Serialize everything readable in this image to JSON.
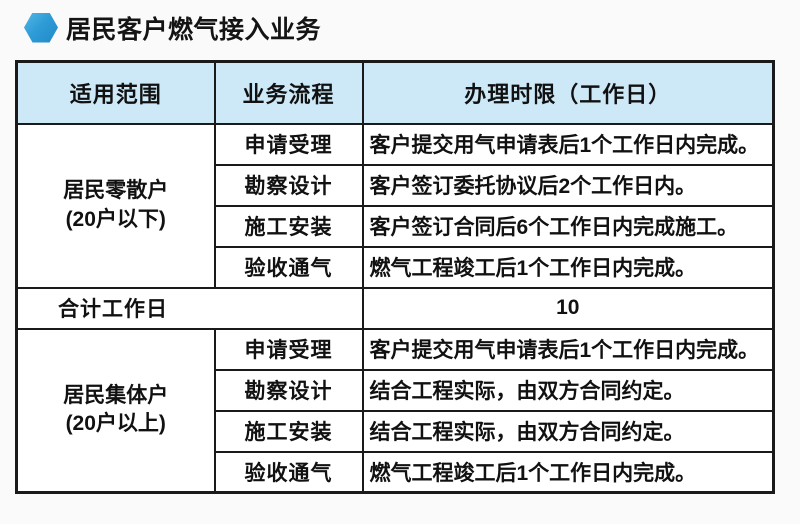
{
  "title": {
    "text": "居民客户燃气接入业务",
    "icon": "hexagon-bullet-icon"
  },
  "colors": {
    "accent_blue": "#2e9cd6",
    "accent_blue_light": "#56b7e6",
    "header_bg": "#cde9f8",
    "border": "#1a1a1a",
    "page_bg": "#fafafa"
  },
  "table": {
    "headers": {
      "scope": "适用范围",
      "process": "业务流程",
      "limit": "办理时限（工作日）"
    },
    "groups": [
      {
        "scope_line1": "居民零散户",
        "scope_line2": "(20户以下)",
        "rows": [
          {
            "process": "申请受理",
            "limit": "客户提交用气申请表后1个工作日内完成。"
          },
          {
            "process": "勘察设计",
            "limit": "客户签订委托协议后2个工作日内。"
          },
          {
            "process": "施工安装",
            "limit": "客户签订合同后6个工作日内完成施工。"
          },
          {
            "process": "验收通气",
            "limit": "燃气工程竣工后1个工作日内完成。"
          }
        ]
      },
      {
        "scope_line1": "居民集体户",
        "scope_line2": "(20户以上)",
        "rows": [
          {
            "process": "申请受理",
            "limit": "客户提交用气申请表后1个工作日内完成。"
          },
          {
            "process": "勘察设计",
            "limit": "结合工程实际，由双方合同约定。"
          },
          {
            "process": "施工安装",
            "limit": "结合工程实际，由双方合同约定。"
          },
          {
            "process": "验收通气",
            "limit": "燃气工程竣工后1个工作日内完成。"
          }
        ]
      }
    ],
    "summary": {
      "label": "合计工作日",
      "value": "10"
    }
  }
}
